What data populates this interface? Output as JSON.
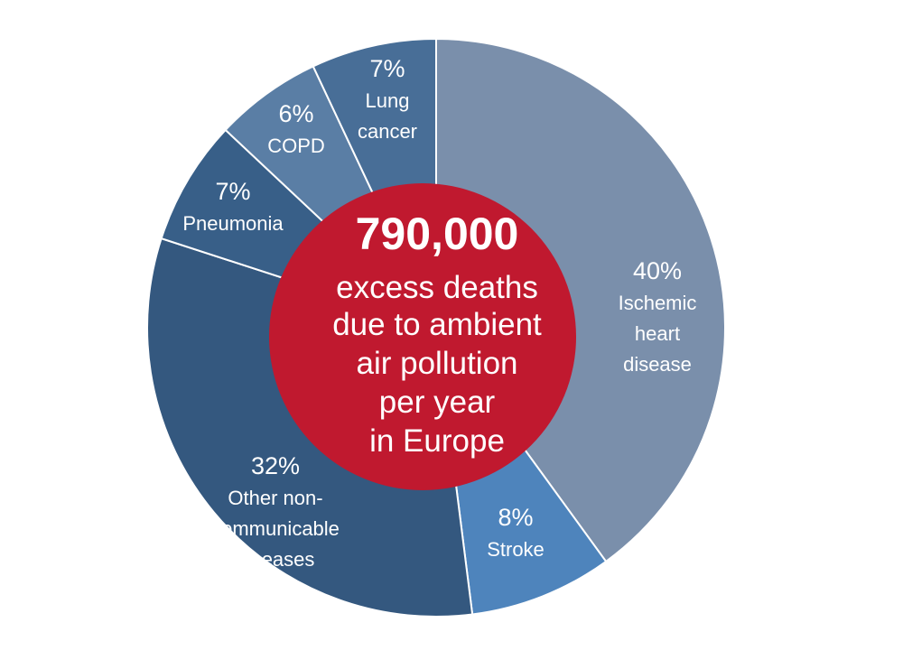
{
  "chart_data": {
    "type": "pie",
    "style": "donut-with-center-circle",
    "center": {
      "value": "790,000",
      "lines": [
        "excess deaths",
        "due to ambient",
        "air pollution",
        "per year",
        "in Europe"
      ],
      "color": "#c0192f"
    },
    "slices": [
      {
        "percent_label": "40%",
        "label_lines": [
          "Ischemic",
          "heart",
          "disease"
        ],
        "value": 40,
        "color": "#7a8fab"
      },
      {
        "percent_label": "8%",
        "label_lines": [
          "Stroke"
        ],
        "value": 8,
        "color": "#4e84bc"
      },
      {
        "percent_label": "32%",
        "label_lines": [
          "Other non-",
          "communicable",
          "diseases"
        ],
        "value": 32,
        "color": "#34587f"
      },
      {
        "percent_label": "7%",
        "label_lines": [
          "Pneumonia"
        ],
        "value": 7,
        "color": "#385f88"
      },
      {
        "percent_label": "6%",
        "label_lines": [
          "COPD"
        ],
        "value": 6,
        "color": "#5a7ea5"
      },
      {
        "percent_label": "7%",
        "label_lines": [
          "Lung",
          "cancer"
        ],
        "value": 7,
        "color": "#486e97"
      }
    ]
  }
}
